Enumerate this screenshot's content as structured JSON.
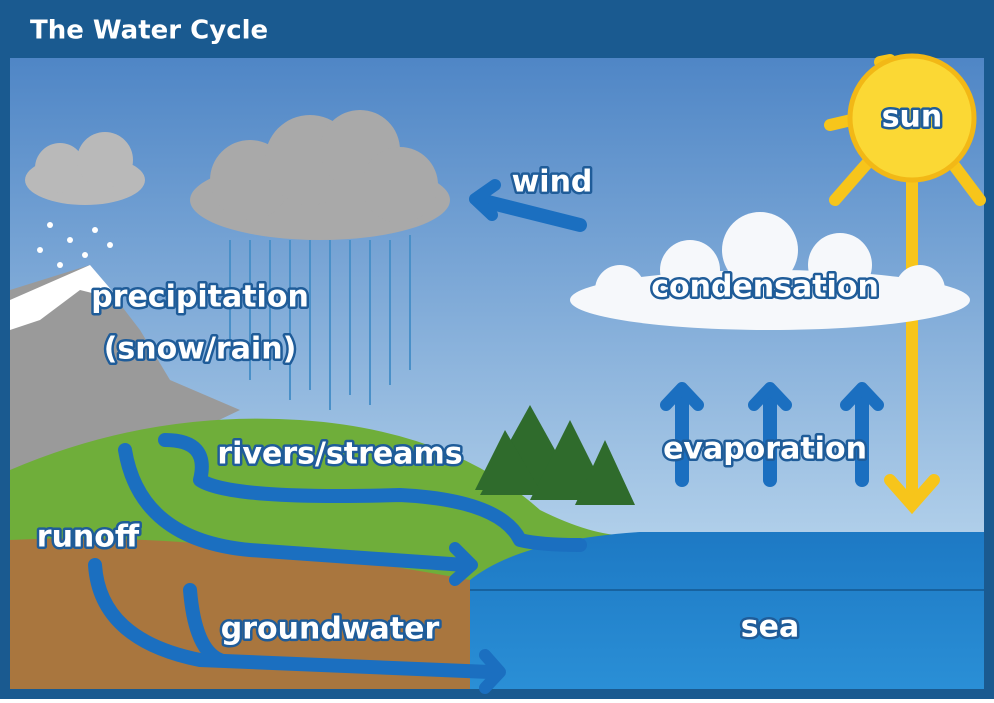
{
  "header": {
    "title": "The Water Cycle"
  },
  "labels": {
    "sun": "sun",
    "wind": "wind",
    "condensation": "condensation",
    "precipitation": "precipitation",
    "precipitation_detail": "(snow/rain)",
    "evaporation": "evaporation",
    "rivers": "rivers/streams",
    "runoff": "runoff",
    "groundwater": "groundwater",
    "sea": "sea"
  }
}
